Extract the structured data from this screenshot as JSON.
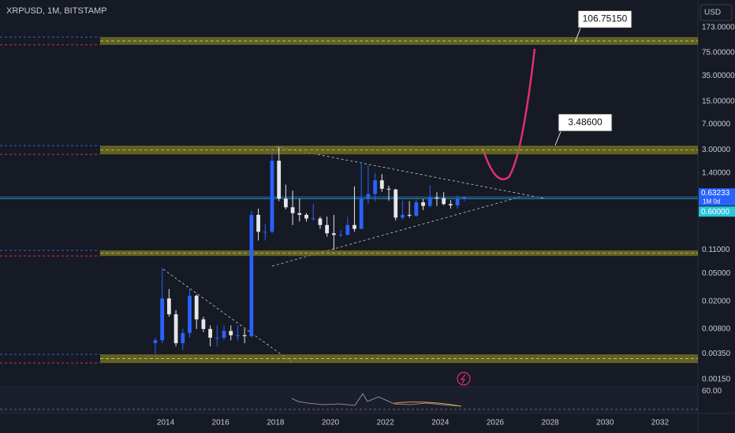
{
  "chart_data": {
    "type": "candlestick",
    "title": "XRPUSD, 1M, BITSTAMP",
    "currency": "USD",
    "log_scale": true,
    "grid": false,
    "up_color": "#2962ff",
    "down_color": "#e6e6e6",
    "zone_color": "#7a7a22",
    "x": [
      2013.625,
      2013.875,
      2014.125,
      2014.375,
      2014.625,
      2014.875,
      2015.125,
      2015.375,
      2015.625,
      2015.875,
      2016.125,
      2016.375,
      2016.625,
      2016.875,
      2017.125,
      2017.375,
      2017.625,
      2017.875,
      2018.125,
      2018.375,
      2018.625,
      2018.875,
      2019.125,
      2019.375,
      2019.625,
      2019.875,
      2020.125,
      2020.375,
      2020.625,
      2020.875,
      2021.125,
      2021.375,
      2021.625,
      2021.875,
      2022.125,
      2022.375,
      2022.625,
      2022.875,
      2023.125,
      2023.375,
      2023.625,
      2023.875,
      2024.125,
      2024.375,
      2024.625,
      2024.875
    ],
    "open": [
      0.005,
      0.0055,
      0.022,
      0.013,
      0.005,
      0.007,
      0.024,
      0.011,
      0.008,
      0.006,
      0.006,
      0.0075,
      0.0065,
      0.0065,
      0.0063,
      0.35,
      0.2,
      0.2,
      2.1,
      0.6,
      0.45,
      0.37,
      0.35,
      0.31,
      0.31,
      0.25,
      0.19,
      0.18,
      0.18,
      0.25,
      0.22,
      0.6,
      0.7,
      1.1,
      0.83,
      0.81,
      0.32,
      0.35,
      0.34,
      0.53,
      0.47,
      0.62,
      0.61,
      0.5,
      0.48,
      0.6
    ],
    "high": [
      0.006,
      0.06,
      0.03,
      0.015,
      0.008,
      0.03,
      0.025,
      0.012,
      0.009,
      0.009,
      0.009,
      0.009,
      0.009,
      0.008,
      0.4,
      0.43,
      0.26,
      2.6,
      3.3,
      0.95,
      0.78,
      0.6,
      0.37,
      0.5,
      0.33,
      0.33,
      0.35,
      0.21,
      0.33,
      0.9,
      1.97,
      1.8,
      1.4,
      1.35,
      0.92,
      0.83,
      0.56,
      0.55,
      0.58,
      0.59,
      0.94,
      0.74,
      0.74,
      0.57,
      0.66,
      0.65
    ],
    "low": [
      0.0035,
      0.005,
      0.012,
      0.0045,
      0.004,
      0.006,
      0.008,
      0.0072,
      0.0045,
      0.0045,
      0.0055,
      0.0055,
      0.0055,
      0.005,
      0.006,
      0.15,
      0.15,
      0.19,
      0.55,
      0.42,
      0.25,
      0.28,
      0.28,
      0.29,
      0.22,
      0.17,
      0.11,
      0.17,
      0.18,
      0.2,
      0.22,
      0.5,
      0.55,
      0.75,
      0.56,
      0.29,
      0.3,
      0.32,
      0.33,
      0.41,
      0.45,
      0.47,
      0.48,
      0.43,
      0.43,
      0.55
    ],
    "close": [
      0.0055,
      0.022,
      0.013,
      0.005,
      0.007,
      0.024,
      0.011,
      0.008,
      0.006,
      0.006,
      0.0075,
      0.0065,
      0.0065,
      0.0063,
      0.35,
      0.2,
      0.2,
      2.1,
      0.6,
      0.45,
      0.37,
      0.35,
      0.31,
      0.31,
      0.25,
      0.19,
      0.18,
      0.18,
      0.25,
      0.22,
      0.6,
      0.7,
      1.1,
      0.83,
      0.81,
      0.32,
      0.35,
      0.34,
      0.53,
      0.47,
      0.62,
      0.61,
      0.5,
      0.48,
      0.6,
      0.63233
    ],
    "xlim": [
      2007.97,
      2033.38
    ],
    "ylim": [
      0.00122,
      430
    ],
    "xticks": [
      2014,
      2016,
      2018,
      2020,
      2022,
      2024,
      2026,
      2028,
      2030,
      2032
    ],
    "yticks": [
      {
        "value": 173,
        "label": "173.00000"
      },
      {
        "value": 75,
        "label": "75.00000"
      },
      {
        "value": 35,
        "label": "35.00000"
      },
      {
        "value": 15,
        "label": "15.00000"
      },
      {
        "value": 7,
        "label": "7.00000"
      },
      {
        "value": 3,
        "label": "3.00000"
      },
      {
        "value": 1.4,
        "label": "1.40000"
      },
      {
        "value": 0.11,
        "label": "0.11000"
      },
      {
        "value": 0.05,
        "label": "0.05000"
      },
      {
        "value": 0.02,
        "label": "0.02000"
      },
      {
        "value": 0.008,
        "label": "0.00800"
      },
      {
        "value": 0.0035,
        "label": "0.00350"
      },
      {
        "value": 0.0015,
        "label": "0.00150"
      }
    ],
    "zones": [
      {
        "low": 97.5,
        "high": 126
      },
      {
        "low": 2.59,
        "high": 3.46
      },
      {
        "low": 0.0897,
        "high": 0.108
      },
      {
        "low": 0.00259,
        "high": 0.00345
      }
    ],
    "last_price": 0.63233,
    "last_price_countdown": "1M 0d",
    "alert_price": {
      "value": 0.6,
      "label": "0.60000"
    },
    "callouts": [
      {
        "value": 106.7515,
        "label": "106.75150"
      },
      {
        "value": 3.486,
        "label": "3.48600"
      }
    ],
    "indicator_tick": {
      "value": 60,
      "label": "60.00"
    }
  }
}
